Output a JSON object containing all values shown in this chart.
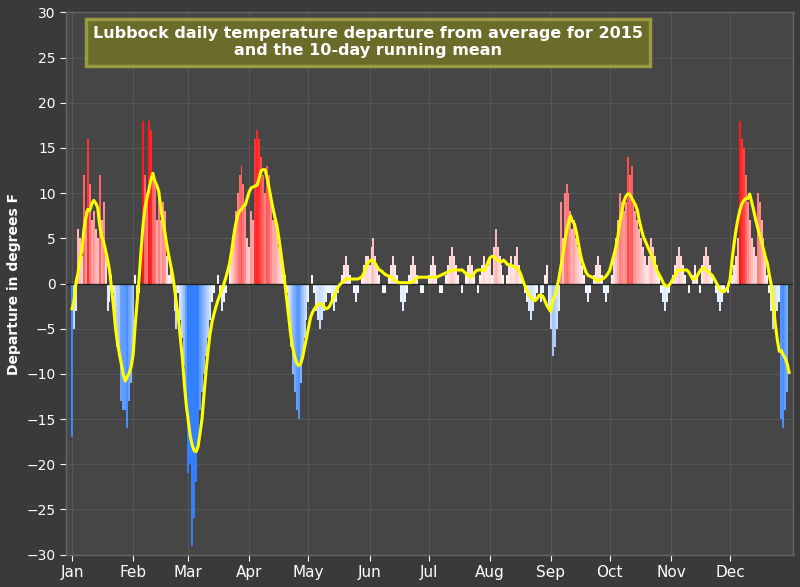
{
  "title_line1": "Lubbock daily temperature departure from average for 2015",
  "title_line2": "and the 10-day running mean",
  "ylabel": "Departure in degrees F",
  "background_color": "#3a3a3a",
  "plot_bg_color": "#464646",
  "grid_color": "#5a5a5a",
  "title_bg_color": "#6b6b2a",
  "title_border_color": "#9a9a40",
  "title_text_color": "#ffffff",
  "running_mean_color": "#ffff00",
  "ylim": [
    -30,
    30
  ],
  "months": [
    "Jan",
    "Feb",
    "Mar",
    "Apr",
    "May",
    "Jun",
    "Jul",
    "Aug",
    "Sep",
    "Oct",
    "Nov",
    "Dec"
  ],
  "month_starts": [
    0,
    31,
    59,
    90,
    120,
    151,
    181,
    212,
    243,
    273,
    304,
    334
  ],
  "departures": [
    -17,
    -5,
    -3,
    6,
    5,
    3,
    12,
    8,
    16,
    11,
    7,
    8,
    6,
    5,
    12,
    7,
    9,
    3,
    -3,
    -2,
    1,
    -1,
    -4,
    -7,
    -8,
    -13,
    -14,
    -14,
    -16,
    -13,
    -11,
    -8,
    1,
    -3,
    -1,
    0,
    18,
    12,
    10,
    18,
    17,
    12,
    11,
    7,
    10,
    7,
    9,
    8,
    3,
    1,
    2,
    0,
    -3,
    -5,
    -1,
    -4,
    -6,
    -9,
    -14,
    -21,
    -20,
    -29,
    -26,
    -22,
    -18,
    -14,
    -12,
    -10,
    -8,
    -6,
    -4,
    -2,
    -1,
    0,
    1,
    -1,
    -3,
    -2,
    -1,
    0,
    2,
    4,
    6,
    8,
    10,
    12,
    13,
    11,
    9,
    5,
    4,
    8,
    7,
    16,
    17,
    16,
    14,
    12,
    10,
    13,
    12,
    9,
    7,
    7,
    6,
    4,
    3,
    2,
    1,
    -1,
    -4,
    -7,
    -10,
    -12,
    -14,
    -15,
    -11,
    -8,
    -6,
    -4,
    -2,
    0,
    1,
    -1,
    -3,
    -4,
    -5,
    -4,
    -3,
    -2,
    -1,
    -1,
    -2,
    -3,
    -2,
    -1,
    0,
    1,
    2,
    3,
    2,
    1,
    0,
    -1,
    -2,
    -1,
    0,
    1,
    2,
    3,
    3,
    2,
    4,
    5,
    3,
    2,
    1,
    0,
    -1,
    -1,
    0,
    1,
    2,
    3,
    2,
    1,
    0,
    -2,
    -3,
    -2,
    -1,
    1,
    2,
    3,
    2,
    1,
    0,
    -1,
    -1,
    0,
    0,
    1,
    2,
    3,
    2,
    1,
    0,
    -1,
    -1,
    0,
    1,
    2,
    3,
    4,
    3,
    2,
    1,
    0,
    -1,
    0,
    1,
    2,
    3,
    2,
    1,
    0,
    -1,
    1,
    2,
    3,
    2,
    2,
    3,
    1,
    4,
    6,
    4,
    3,
    2,
    1,
    0,
    1,
    2,
    3,
    2,
    3,
    4,
    2,
    1,
    0,
    -1,
    -2,
    -3,
    -4,
    -3,
    -2,
    -1,
    0,
    -2,
    -1,
    1,
    2,
    -3,
    -5,
    -8,
    -7,
    -5,
    -3,
    9,
    5,
    10,
    11,
    10,
    8,
    6,
    7,
    5,
    4,
    3,
    2,
    1,
    -1,
    -2,
    -1,
    0,
    1,
    2,
    3,
    2,
    1,
    -1,
    -2,
    -1,
    0,
    1,
    3,
    5,
    7,
    10,
    9,
    8,
    9,
    14,
    12,
    13,
    9,
    8,
    7,
    6,
    5,
    4,
    3,
    2,
    3,
    5,
    4,
    3,
    2,
    1,
    -1,
    -2,
    -3,
    -2,
    -1,
    0,
    1,
    2,
    3,
    4,
    3,
    2,
    1,
    0,
    -1,
    0,
    1,
    2,
    1,
    0,
    -1,
    2,
    3,
    4,
    3,
    2,
    1,
    0,
    -1,
    -2,
    -3,
    -2,
    -1,
    0,
    -1,
    0,
    1,
    2,
    3,
    5,
    18,
    16,
    15,
    12,
    9,
    7,
    5,
    4,
    3,
    10,
    9,
    7,
    5,
    3,
    1,
    -1,
    -3,
    -5,
    -4,
    -3,
    -2,
    -15,
    -16,
    -14,
    -12
  ]
}
